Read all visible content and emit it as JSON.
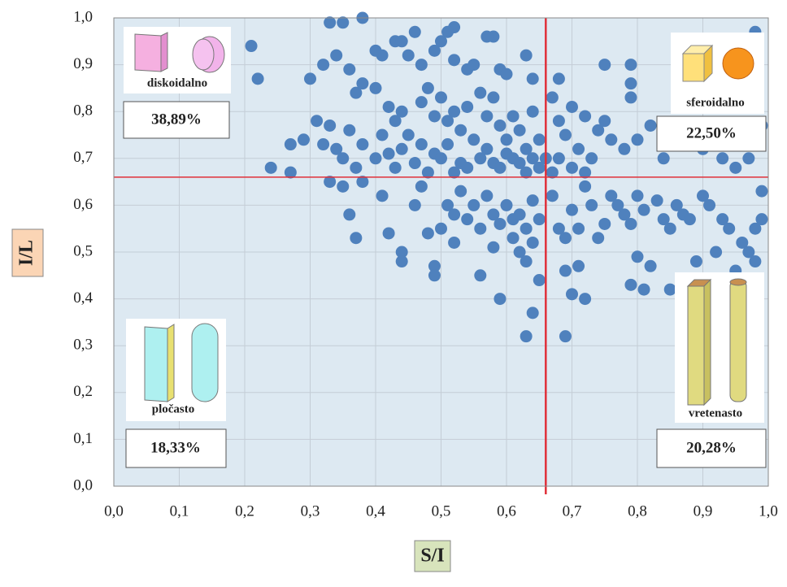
{
  "chart_data": {
    "type": "scatter",
    "x_label": "S/I",
    "y_label": "I/L",
    "color": "#4f81bd",
    "background": "#dde9f2",
    "grid": true,
    "xlim": [
      0,
      1
    ],
    "ylim": [
      0,
      1
    ],
    "xticks": [
      {
        "value": 0,
        "label": "0,0"
      },
      {
        "value": 0.1,
        "label": "0,1"
      },
      {
        "value": 0.2,
        "label": "0,2"
      },
      {
        "value": 0.3,
        "label": "0,3"
      },
      {
        "value": 0.4,
        "label": "0,4"
      },
      {
        "value": 0.5,
        "label": "0,5"
      },
      {
        "value": 0.6,
        "label": "0,6"
      },
      {
        "value": 0.7,
        "label": "0,7"
      },
      {
        "value": 0.8,
        "label": "0,8"
      },
      {
        "value": 0.9,
        "label": "0,9"
      },
      {
        "value": 1,
        "label": "1,0"
      }
    ],
    "yticks": [
      {
        "value": 0,
        "label": "0,0"
      },
      {
        "value": 0.1,
        "label": "0,1"
      },
      {
        "value": 0.2,
        "label": "0,2"
      },
      {
        "value": 0.3,
        "label": "0,3"
      },
      {
        "value": 0.4,
        "label": "0,4"
      },
      {
        "value": 0.5,
        "label": "0,5"
      },
      {
        "value": 0.6,
        "label": "0,6"
      },
      {
        "value": 0.7,
        "label": "0,7"
      },
      {
        "value": 0.8,
        "label": "0,8"
      },
      {
        "value": 0.9,
        "label": "0,9"
      },
      {
        "value": 1,
        "label": "1,0"
      }
    ],
    "reference_lines": {
      "x": 0.66,
      "y": 0.66,
      "color": "#e0303a"
    },
    "annotations": [
      "diskoidalno",
      "38,89%",
      "sferoidalno",
      "22,50%",
      "pločasto",
      "18,33%",
      "vretenasto",
      "20,28%"
    ],
    "x": [
      0.38,
      0.33,
      0.35,
      0.52,
      0.51,
      0.46,
      0.58,
      0.57,
      0.98,
      0.21,
      0.22,
      0.3,
      0.34,
      0.32,
      0.36,
      0.4,
      0.41,
      0.43,
      0.44,
      0.45,
      0.47,
      0.49,
      0.5,
      0.52,
      0.54,
      0.55,
      0.59,
      0.6,
      0.63,
      0.64,
      0.68,
      0.75,
      0.79,
      0.79,
      0.79,
      0.37,
      0.38,
      0.4,
      0.42,
      0.43,
      0.44,
      0.45,
      0.47,
      0.48,
      0.49,
      0.5,
      0.51,
      0.52,
      0.53,
      0.54,
      0.55,
      0.56,
      0.57,
      0.58,
      0.59,
      0.6,
      0.61,
      0.62,
      0.63,
      0.64,
      0.65,
      0.66,
      0.67,
      0.68,
      0.69,
      0.7,
      0.71,
      0.72,
      0.73,
      0.74,
      0.75,
      0.76,
      0.78,
      0.8,
      0.82,
      0.84,
      0.87,
      0.9,
      0.93,
      0.95,
      0.97,
      0.99,
      0.24,
      0.27,
      0.27,
      0.29,
      0.31,
      0.32,
      0.33,
      0.34,
      0.35,
      0.36,
      0.37,
      0.38,
      0.4,
      0.41,
      0.42,
      0.43,
      0.44,
      0.46,
      0.47,
      0.48,
      0.49,
      0.5,
      0.51,
      0.52,
      0.53,
      0.54,
      0.56,
      0.57,
      0.58,
      0.59,
      0.6,
      0.61,
      0.62,
      0.63,
      0.64,
      0.65,
      0.67,
      0.68,
      0.7,
      0.72,
      0.33,
      0.35,
      0.36,
      0.37,
      0.38,
      0.41,
      0.42,
      0.44,
      0.44,
      0.46,
      0.47,
      0.48,
      0.49,
      0.49,
      0.5,
      0.51,
      0.52,
      0.52,
      0.53,
      0.54,
      0.55,
      0.56,
      0.56,
      0.57,
      0.58,
      0.58,
      0.59,
      0.59,
      0.6,
      0.61,
      0.61,
      0.62,
      0.62,
      0.63,
      0.63,
      0.64,
      0.64,
      0.65,
      0.65,
      0.63,
      0.64,
      0.67,
      0.68,
      0.69,
      0.69,
      0.7,
      0.7,
      0.71,
      0.71,
      0.72,
      0.72,
      0.73,
      0.74,
      0.75,
      0.76,
      0.77,
      0.78,
      0.79,
      0.8,
      0.8,
      0.81,
      0.82,
      0.83,
      0.84,
      0.85,
      0.85,
      0.86,
      0.87,
      0.88,
      0.89,
      0.9,
      0.91,
      0.92,
      0.93,
      0.94,
      0.95,
      0.96,
      0.97,
      0.98,
      0.99,
      0.98,
      0.99,
      0.69,
      0.79,
      0.81
    ],
    "values": [
      1.0,
      0.99,
      0.99,
      0.98,
      0.97,
      0.97,
      0.96,
      0.96,
      0.97,
      0.94,
      0.87,
      0.87,
      0.92,
      0.9,
      0.89,
      0.93,
      0.92,
      0.95,
      0.95,
      0.92,
      0.9,
      0.93,
      0.95,
      0.91,
      0.89,
      0.9,
      0.89,
      0.88,
      0.92,
      0.87,
      0.87,
      0.9,
      0.9,
      0.86,
      0.83,
      0.84,
      0.86,
      0.85,
      0.81,
      0.78,
      0.8,
      0.75,
      0.82,
      0.85,
      0.79,
      0.83,
      0.78,
      0.8,
      0.76,
      0.81,
      0.74,
      0.84,
      0.79,
      0.83,
      0.77,
      0.74,
      0.79,
      0.76,
      0.72,
      0.8,
      0.74,
      0.7,
      0.83,
      0.78,
      0.75,
      0.81,
      0.72,
      0.79,
      0.7,
      0.76,
      0.78,
      0.74,
      0.72,
      0.74,
      0.77,
      0.7,
      0.75,
      0.72,
      0.7,
      0.68,
      0.7,
      0.77,
      0.68,
      0.67,
      0.73,
      0.74,
      0.78,
      0.73,
      0.77,
      0.72,
      0.7,
      0.76,
      0.68,
      0.73,
      0.7,
      0.75,
      0.71,
      0.68,
      0.72,
      0.69,
      0.73,
      0.67,
      0.71,
      0.7,
      0.73,
      0.67,
      0.69,
      0.68,
      0.7,
      0.72,
      0.69,
      0.68,
      0.71,
      0.7,
      0.69,
      0.67,
      0.7,
      0.68,
      0.67,
      0.7,
      0.68,
      0.67,
      0.65,
      0.64,
      0.58,
      0.53,
      0.65,
      0.62,
      0.54,
      0.5,
      0.48,
      0.6,
      0.64,
      0.54,
      0.47,
      0.45,
      0.55,
      0.6,
      0.58,
      0.52,
      0.63,
      0.57,
      0.6,
      0.55,
      0.45,
      0.62,
      0.58,
      0.51,
      0.56,
      0.4,
      0.6,
      0.53,
      0.57,
      0.5,
      0.58,
      0.55,
      0.48,
      0.61,
      0.52,
      0.57,
      0.44,
      0.32,
      0.37,
      0.62,
      0.55,
      0.53,
      0.46,
      0.59,
      0.41,
      0.47,
      0.55,
      0.64,
      0.4,
      0.6,
      0.53,
      0.56,
      0.62,
      0.6,
      0.58,
      0.56,
      0.62,
      0.49,
      0.59,
      0.47,
      0.61,
      0.57,
      0.55,
      0.42,
      0.6,
      0.58,
      0.57,
      0.48,
      0.62,
      0.6,
      0.5,
      0.57,
      0.55,
      0.46,
      0.52,
      0.5,
      0.55,
      0.57,
      0.48,
      0.63,
      0.32,
      0.43,
      0.42
    ]
  }
}
